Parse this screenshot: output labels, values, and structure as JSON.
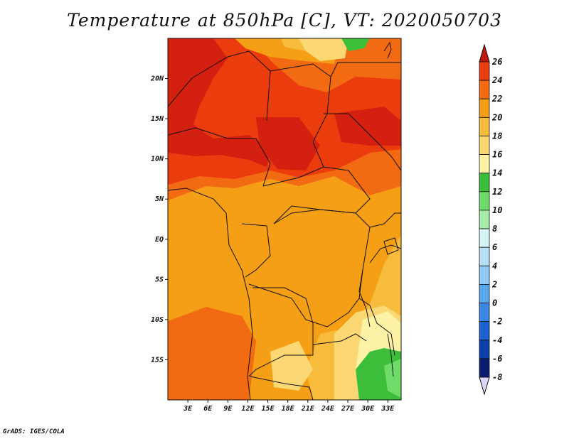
{
  "title": "Temperature at 850hPa [C], VT: 2020050703",
  "credit": "GrADS: IGES/COLA",
  "map": {
    "lat_ticks": [
      "20N",
      "15N",
      "10N",
      "5N",
      "EQ",
      "5S",
      "10S",
      "15S"
    ],
    "lat_values": [
      20,
      15,
      10,
      5,
      0,
      -5,
      -10,
      -15
    ],
    "lon_ticks": [
      "3E",
      "6E",
      "9E",
      "12E",
      "15E",
      "18E",
      "21E",
      "24E",
      "27E",
      "30E",
      "33E"
    ],
    "lon_values": [
      3,
      6,
      9,
      12,
      15,
      18,
      21,
      24,
      27,
      30,
      33
    ],
    "lon_range": [
      0,
      35
    ],
    "lat_range": [
      -20,
      25
    ]
  },
  "colorbar": {
    "levels": [
      26,
      24,
      22,
      20,
      18,
      16,
      14,
      12,
      10,
      8,
      6,
      4,
      2,
      0,
      -2,
      -4,
      -6,
      -8
    ],
    "level_labels": [
      "26",
      "24",
      "22",
      "20",
      "18",
      "16",
      "14",
      "12",
      "10",
      "8",
      "6",
      "4",
      "2",
      "0",
      "-2",
      "-4",
      "-6",
      "-8"
    ],
    "colors": [
      "#d42010",
      "#ea3c0c",
      "#f26a12",
      "#f59f16",
      "#f8bc3c",
      "#fbd874",
      "#fef2a6",
      "#3cbe3a",
      "#6fdc6a",
      "#a8ecaa",
      "#d6f4f6",
      "#b6e0f8",
      "#8ecbf8",
      "#5aa8f0",
      "#3a88e6",
      "#1e62d2",
      "#0a3ea8",
      "#0a1c70"
    ],
    "min_arrow_color": "#dcd6f8",
    "max_arrow_color": "#c0180e"
  }
}
